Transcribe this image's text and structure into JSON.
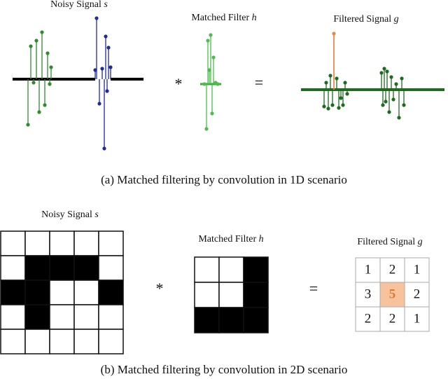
{
  "figure_a": {
    "noisy_title": "Noisy Signal",
    "noisy_symbol": "s",
    "filter_title": "Matched Filter",
    "filter_symbol": "h",
    "filtered_title": "Filtered Signal",
    "filtered_symbol": "g",
    "conv_op": "*",
    "eq_op": "=",
    "caption": "(a) Matched filtering by convolution in 1D scenario"
  },
  "figure_b": {
    "noisy_title": "Noisy Signal",
    "noisy_symbol": "s",
    "filter_title": "Matched Filter",
    "filter_symbol": "h",
    "filtered_title": "Filtered Signal",
    "filtered_symbol": "g",
    "conv_op": "*",
    "eq_op": "=",
    "filtered_values": [
      [
        1,
        2,
        1
      ],
      [
        3,
        5,
        2
      ],
      [
        2,
        2,
        1
      ]
    ],
    "caption": "(b) Matched filtering by convolution in 2D scenario"
  }
}
